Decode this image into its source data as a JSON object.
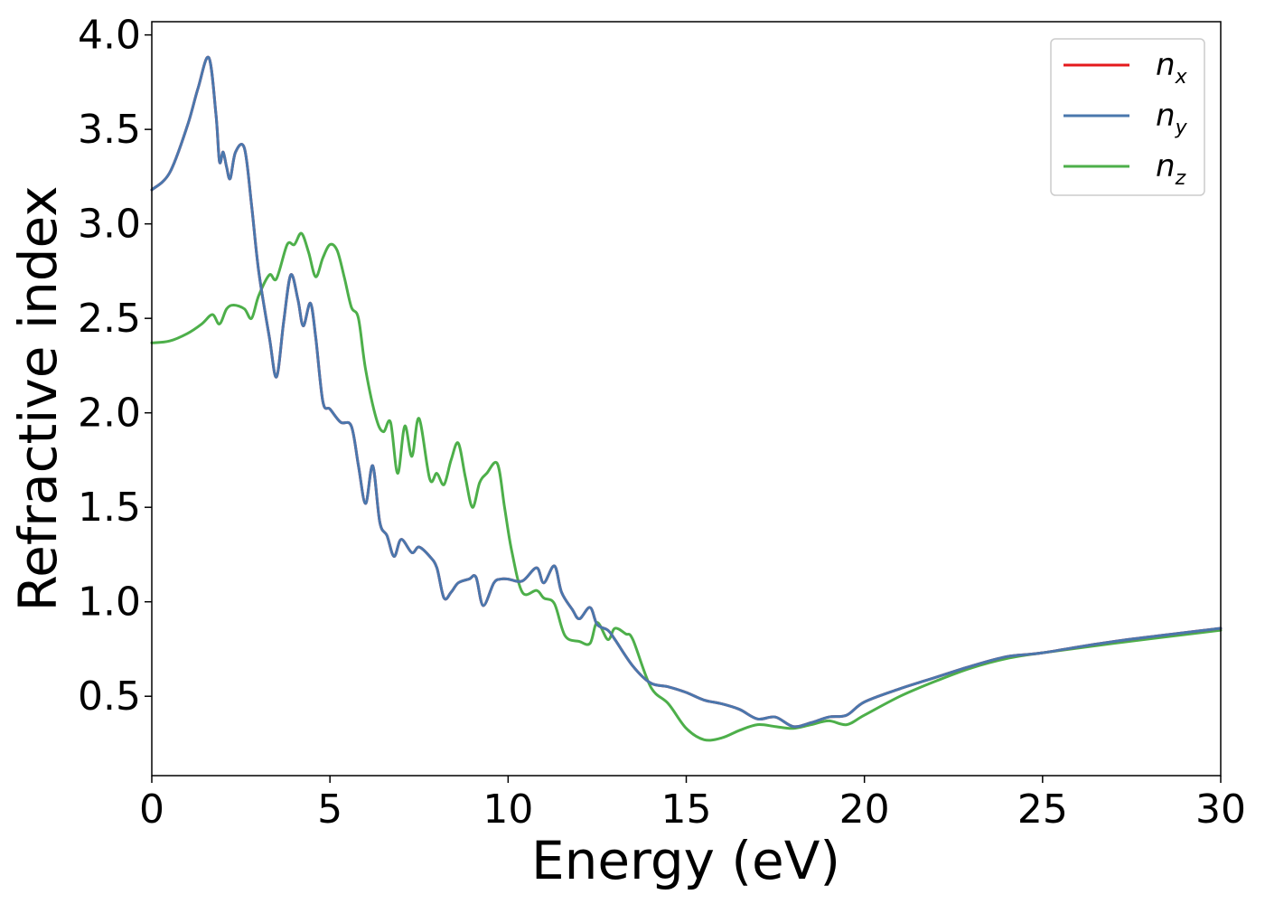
{
  "chart_data": {
    "type": "line",
    "title": "",
    "xlabel": "Energy (eV)",
    "ylabel": "Refractive index",
    "xlim": [
      0,
      30
    ],
    "ylim": [
      0.08,
      4.07
    ],
    "grid": false,
    "legend_position": "top-right",
    "x_ticks": [
      0,
      5,
      10,
      15,
      20,
      25,
      30
    ],
    "x_tick_labels": [
      "0",
      "5",
      "10",
      "15",
      "20",
      "25",
      "30"
    ],
    "y_ticks": [
      0.5,
      1.0,
      1.5,
      2.0,
      2.5,
      3.0,
      3.5,
      4.0
    ],
    "y_tick_labels": [
      "0.5",
      "1.0",
      "1.5",
      "2.0",
      "2.5",
      "3.0",
      "3.5",
      "4.0"
    ],
    "series": [
      {
        "name": "n_x",
        "label_base": "n",
        "label_sub": "x",
        "color": "#e41a1c",
        "x": [
          0,
          0.5,
          1.0,
          1.3,
          1.6,
          1.8,
          1.9,
          2.0,
          2.1,
          2.2,
          2.35,
          2.6,
          2.8,
          3.0,
          3.3,
          3.5,
          3.7,
          3.9,
          4.1,
          4.25,
          4.45,
          4.6,
          4.8,
          5.0,
          5.3,
          5.6,
          5.8,
          6.0,
          6.2,
          6.4,
          6.6,
          6.8,
          7.0,
          7.3,
          7.5,
          7.8,
          8.0,
          8.2,
          8.4,
          8.6,
          8.9,
          9.1,
          9.3,
          9.6,
          9.8,
          10.0,
          10.4,
          10.8,
          11.0,
          11.3,
          11.5,
          11.8,
          12.0,
          12.3,
          12.5,
          12.8,
          13.0,
          13.5,
          14.0,
          14.5,
          15.0,
          15.5,
          16.0,
          16.5,
          17.0,
          17.5,
          18.0,
          18.5,
          19.0,
          19.5,
          20.0,
          21.0,
          22.0,
          23.0,
          24.0,
          25.0,
          27.0,
          30.0
        ],
        "y": [
          3.18,
          3.27,
          3.52,
          3.72,
          3.88,
          3.58,
          3.33,
          3.38,
          3.3,
          3.24,
          3.38,
          3.4,
          3.1,
          2.75,
          2.4,
          2.19,
          2.48,
          2.73,
          2.6,
          2.46,
          2.58,
          2.4,
          2.06,
          2.02,
          1.95,
          1.93,
          1.72,
          1.52,
          1.72,
          1.42,
          1.35,
          1.24,
          1.33,
          1.26,
          1.29,
          1.24,
          1.18,
          1.02,
          1.05,
          1.1,
          1.12,
          1.13,
          0.98,
          1.1,
          1.12,
          1.12,
          1.11,
          1.18,
          1.1,
          1.19,
          1.05,
          0.96,
          0.91,
          0.97,
          0.88,
          0.85,
          0.8,
          0.66,
          0.57,
          0.55,
          0.52,
          0.48,
          0.46,
          0.43,
          0.38,
          0.39,
          0.34,
          0.36,
          0.39,
          0.4,
          0.47,
          0.54,
          0.6,
          0.66,
          0.71,
          0.73,
          0.79,
          0.86
        ]
      },
      {
        "name": "n_y",
        "label_base": "n",
        "label_sub": "y",
        "color": "#4a77ad",
        "x": [
          0,
          0.5,
          1.0,
          1.3,
          1.6,
          1.8,
          1.9,
          2.0,
          2.1,
          2.2,
          2.35,
          2.6,
          2.8,
          3.0,
          3.3,
          3.5,
          3.7,
          3.9,
          4.1,
          4.25,
          4.45,
          4.6,
          4.8,
          5.0,
          5.3,
          5.6,
          5.8,
          6.0,
          6.2,
          6.4,
          6.6,
          6.8,
          7.0,
          7.3,
          7.5,
          7.8,
          8.0,
          8.2,
          8.4,
          8.6,
          8.9,
          9.1,
          9.3,
          9.6,
          9.8,
          10.0,
          10.4,
          10.8,
          11.0,
          11.3,
          11.5,
          11.8,
          12.0,
          12.3,
          12.5,
          12.8,
          13.0,
          13.5,
          14.0,
          14.5,
          15.0,
          15.5,
          16.0,
          16.5,
          17.0,
          17.5,
          18.0,
          18.5,
          19.0,
          19.5,
          20.0,
          21.0,
          22.0,
          23.0,
          24.0,
          25.0,
          27.0,
          30.0
        ],
        "y": [
          3.18,
          3.27,
          3.52,
          3.72,
          3.88,
          3.58,
          3.33,
          3.38,
          3.3,
          3.24,
          3.38,
          3.4,
          3.1,
          2.75,
          2.4,
          2.19,
          2.48,
          2.73,
          2.6,
          2.46,
          2.58,
          2.4,
          2.06,
          2.02,
          1.95,
          1.93,
          1.72,
          1.52,
          1.72,
          1.42,
          1.35,
          1.24,
          1.33,
          1.26,
          1.29,
          1.24,
          1.18,
          1.02,
          1.05,
          1.1,
          1.12,
          1.13,
          0.98,
          1.1,
          1.12,
          1.12,
          1.11,
          1.18,
          1.1,
          1.19,
          1.05,
          0.96,
          0.91,
          0.97,
          0.88,
          0.85,
          0.8,
          0.66,
          0.57,
          0.55,
          0.52,
          0.48,
          0.46,
          0.43,
          0.38,
          0.39,
          0.34,
          0.36,
          0.39,
          0.4,
          0.47,
          0.54,
          0.6,
          0.66,
          0.71,
          0.73,
          0.79,
          0.86
        ]
      },
      {
        "name": "n_z",
        "label_base": "n",
        "label_sub": "z",
        "color": "#4daf4a",
        "x": [
          0,
          0.5,
          1.0,
          1.4,
          1.7,
          1.9,
          2.1,
          2.3,
          2.6,
          2.8,
          3.0,
          3.3,
          3.5,
          3.8,
          4.0,
          4.2,
          4.4,
          4.6,
          4.8,
          5.0,
          5.2,
          5.4,
          5.6,
          5.8,
          6.0,
          6.3,
          6.5,
          6.7,
          6.9,
          7.1,
          7.3,
          7.5,
          7.8,
          8.0,
          8.2,
          8.4,
          8.6,
          8.8,
          9.0,
          9.2,
          9.4,
          9.7,
          9.9,
          10.1,
          10.4,
          10.8,
          11.0,
          11.3,
          11.6,
          12.0,
          12.3,
          12.5,
          12.8,
          13.0,
          13.3,
          13.5,
          14.0,
          14.5,
          15.0,
          15.5,
          16.0,
          16.5,
          17.0,
          17.5,
          18.0,
          18.5,
          19.0,
          19.5,
          20.0,
          21.0,
          22.0,
          23.0,
          24.0,
          25.0,
          27.0,
          30.0
        ],
        "y": [
          2.37,
          2.38,
          2.42,
          2.47,
          2.52,
          2.47,
          2.55,
          2.57,
          2.55,
          2.5,
          2.62,
          2.73,
          2.71,
          2.89,
          2.89,
          2.95,
          2.85,
          2.72,
          2.82,
          2.89,
          2.86,
          2.72,
          2.56,
          2.5,
          2.23,
          1.97,
          1.9,
          1.95,
          1.68,
          1.93,
          1.77,
          1.97,
          1.65,
          1.68,
          1.62,
          1.75,
          1.84,
          1.66,
          1.5,
          1.63,
          1.68,
          1.73,
          1.5,
          1.27,
          1.05,
          1.06,
          1.02,
          0.99,
          0.82,
          0.79,
          0.78,
          0.89,
          0.8,
          0.86,
          0.83,
          0.8,
          0.55,
          0.46,
          0.33,
          0.27,
          0.28,
          0.32,
          0.35,
          0.34,
          0.33,
          0.35,
          0.37,
          0.35,
          0.4,
          0.5,
          0.58,
          0.65,
          0.7,
          0.73,
          0.78,
          0.85
        ]
      }
    ]
  }
}
